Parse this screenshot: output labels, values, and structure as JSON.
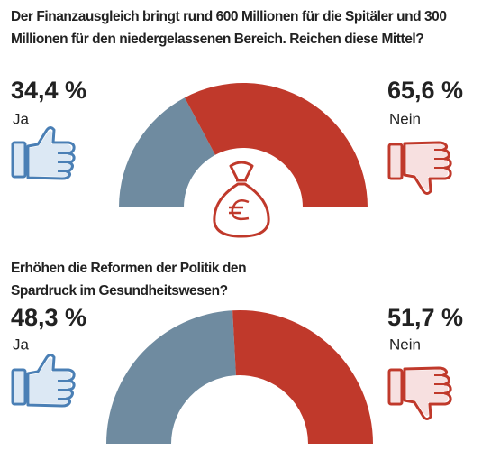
{
  "chart_data": [
    {
      "type": "semicircle",
      "title": "Der Finanzausgleich bringt rund 600 Millionen für die Spitäler und 300 Millionen für den niedergelassenen Bereich. Reichen diese Mittel?",
      "categories": [
        "Ja",
        "Nein"
      ],
      "values": [
        34.4,
        65.6
      ],
      "value_labels": [
        "34,4 %",
        "65,6 %"
      ],
      "colors": [
        "#6f8ba0",
        "#c0392b"
      ]
    },
    {
      "type": "semicircle",
      "title": "Erhöhen die Reformen der Politik den Spardruck im Gesundheitswesen?",
      "categories": [
        "Ja",
        "Nein"
      ],
      "values": [
        48.3,
        51.7
      ],
      "value_labels": [
        "48,3 %",
        "51,7 %"
      ],
      "colors": [
        "#6f8ba0",
        "#c0392b"
      ]
    }
  ]
}
